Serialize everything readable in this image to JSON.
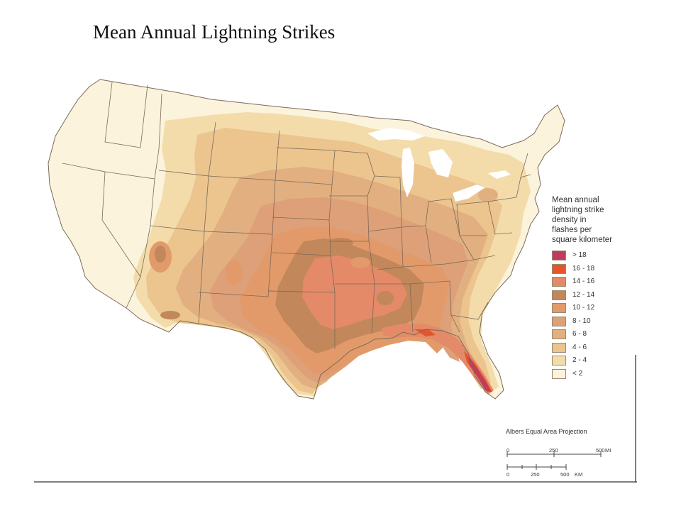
{
  "slide": {
    "title": "Mean Annual  Lightning Strikes"
  },
  "map": {
    "colors": {
      "lt2": "#fbf3dc",
      "d2_4": "#f3dcaa",
      "d4_6": "#ecc48e",
      "d6_8": "#e2b080",
      "d8_10": "#dea078",
      "d10_12": "#e29a6a",
      "d12_14": "#c2875a",
      "d14_16": "#e48a68",
      "d16_18": "#e4552e",
      "gt18": "#c23a5c",
      "border": "#7a6a58",
      "water": "#ffffff"
    }
  },
  "legend": {
    "title_lines": [
      "Mean annual",
      "lightning strike",
      "density in",
      "flashes per",
      "square kilometer"
    ],
    "items": [
      {
        "label": "> 18",
        "color": "#c23a5c"
      },
      {
        "label": "16 - 18",
        "color": "#e4552e"
      },
      {
        "label": "14 - 16",
        "color": "#e48a68"
      },
      {
        "label": "12 - 14",
        "color": "#c2875a"
      },
      {
        "label": "10 - 12",
        "color": "#e29a6a"
      },
      {
        "label": "8 - 10",
        "color": "#dea078"
      },
      {
        "label": "6 - 8",
        "color": "#e2b080"
      },
      {
        "label": "4 - 6",
        "color": "#ecc48e"
      },
      {
        "label": "2 - 4",
        "color": "#f3dcaa"
      },
      {
        "label": "< 2",
        "color": "#fbf3dc"
      }
    ]
  },
  "projection_label": "Albers Equal Area Projection",
  "scale": {
    "miles": {
      "ticks": [
        "0",
        "250",
        "500"
      ],
      "unit": "MI"
    },
    "km": {
      "ticks": [
        "0",
        "250",
        "500"
      ],
      "unit": "KM"
    }
  }
}
